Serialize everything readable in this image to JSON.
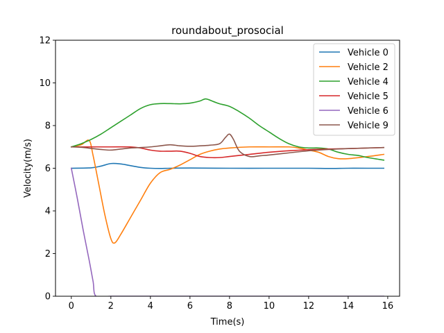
{
  "chart_data": {
    "type": "line",
    "title": "roundabout_prosocial",
    "xlabel": "Time(s)",
    "ylabel": "Velocity(m/s)",
    "xlim": [
      -0.8,
      16.6
    ],
    "ylim": [
      0,
      12
    ],
    "xticks": [
      0,
      2,
      4,
      6,
      8,
      10,
      12,
      14,
      16
    ],
    "yticks": [
      0,
      2,
      4,
      6,
      8,
      10,
      12
    ],
    "grid": false,
    "legend_position": "top-right",
    "series": [
      {
        "name": "Vehicle 0",
        "color": "#1f77b4",
        "x": [
          0,
          1,
          1.5,
          2,
          2.5,
          3,
          3.5,
          4,
          4.5,
          5,
          6,
          8,
          10,
          12,
          13,
          14,
          15,
          15.8
        ],
        "y": [
          6.0,
          6.02,
          6.1,
          6.22,
          6.2,
          6.12,
          6.04,
          6.0,
          5.99,
          6.0,
          6.01,
          6.0,
          6.0,
          6.0,
          5.99,
          6.0,
          6.0,
          6.0
        ]
      },
      {
        "name": "Vehicle 2",
        "color": "#ff7f0e",
        "x": [
          0,
          0.5,
          0.9,
          1.1,
          1.4,
          1.7,
          2.0,
          2.2,
          2.5,
          3,
          3.5,
          4,
          4.5,
          5,
          5.5,
          6,
          6.5,
          7,
          7.5,
          8,
          9,
          10,
          11,
          11.5,
          12,
          12.5,
          13,
          13.5,
          14,
          15,
          15.8
        ],
        "y": [
          7.0,
          7.1,
          7.3,
          6.6,
          5.2,
          3.8,
          2.7,
          2.5,
          2.9,
          3.7,
          4.5,
          5.3,
          5.8,
          5.95,
          6.15,
          6.4,
          6.65,
          6.8,
          6.9,
          6.95,
          7.0,
          7.0,
          7.0,
          6.95,
          6.85,
          6.75,
          6.55,
          6.45,
          6.45,
          6.55,
          6.65
        ]
      },
      {
        "name": "Vehicle 4",
        "color": "#2ca02c",
        "x": [
          0,
          0.5,
          1,
          1.5,
          2,
          2.5,
          3,
          3.5,
          4,
          4.5,
          5,
          5.5,
          6,
          6.5,
          6.8,
          7.2,
          7.5,
          8,
          8.5,
          9,
          9.5,
          10,
          10.5,
          11,
          11.5,
          12,
          12.5,
          13,
          13.5,
          14,
          14.5,
          15,
          15.8
        ],
        "y": [
          7.0,
          7.15,
          7.35,
          7.6,
          7.9,
          8.2,
          8.5,
          8.8,
          8.98,
          9.03,
          9.03,
          9.02,
          9.05,
          9.15,
          9.25,
          9.12,
          9.02,
          8.9,
          8.65,
          8.35,
          8.0,
          7.7,
          7.4,
          7.15,
          7.0,
          6.95,
          6.95,
          6.9,
          6.75,
          6.65,
          6.6,
          6.5,
          6.38
        ]
      },
      {
        "name": "Vehicle 5",
        "color": "#d62728",
        "x": [
          0,
          1,
          2,
          3,
          3.5,
          4,
          4.5,
          5,
          5.5,
          6,
          6.5,
          7,
          7.5,
          8,
          9,
          10,
          11,
          12,
          13,
          14,
          15,
          15.8
        ],
        "y": [
          7.0,
          7.0,
          7.0,
          7.0,
          6.95,
          6.85,
          6.8,
          6.8,
          6.8,
          6.7,
          6.55,
          6.5,
          6.5,
          6.55,
          6.65,
          6.75,
          6.82,
          6.87,
          6.9,
          6.92,
          6.95,
          6.97
        ]
      },
      {
        "name": "Vehicle 6",
        "color": "#9467bd",
        "x": [
          0,
          0.3,
          0.6,
          0.9,
          1.1,
          1.25,
          2,
          4,
          8,
          12,
          15.8
        ],
        "y": [
          6.0,
          4.6,
          3.1,
          1.7,
          0.7,
          0.0,
          0.0,
          0.0,
          0.0,
          0.0,
          0.0
        ]
      },
      {
        "name": "Vehicle 9",
        "color": "#8c564b",
        "x": [
          0,
          0.5,
          1,
          1.5,
          2,
          2.5,
          3,
          3.5,
          4,
          4.5,
          5,
          5.5,
          6,
          6.5,
          7,
          7.5,
          7.8,
          8.0,
          8.2,
          8.5,
          9,
          9.5,
          10,
          11,
          12,
          13,
          14,
          15,
          15.8
        ],
        "y": [
          7.0,
          6.98,
          6.93,
          6.88,
          6.85,
          6.9,
          6.95,
          6.97,
          7.0,
          7.05,
          7.1,
          7.05,
          7.03,
          7.05,
          7.08,
          7.15,
          7.45,
          7.6,
          7.35,
          6.8,
          6.55,
          6.58,
          6.62,
          6.72,
          6.82,
          6.88,
          6.92,
          6.95,
          6.97
        ]
      }
    ]
  }
}
